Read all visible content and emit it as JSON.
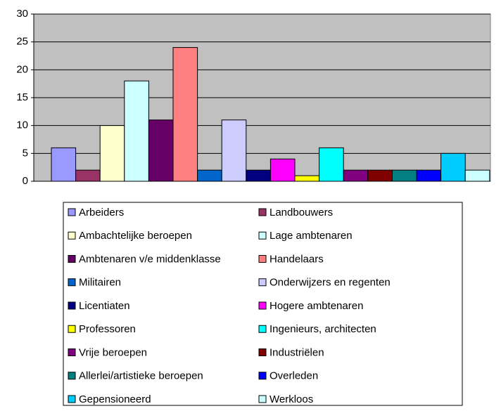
{
  "chart_data": {
    "type": "bar",
    "ylim": [
      0,
      30
    ],
    "yticks": [
      0,
      5,
      10,
      15,
      20,
      25,
      30
    ],
    "grid": true,
    "legend": "bottom",
    "series": [
      {
        "name": "Arbeiders",
        "color": "#9999ff",
        "values": [
          6
        ]
      },
      {
        "name": "Landbouwers",
        "color": "#993366",
        "values": [
          2
        ]
      },
      {
        "name": "Ambachtelijke beroepen",
        "color": "#ffffcc",
        "values": [
          10
        ]
      },
      {
        "name": "Lage ambtenaren",
        "color": "#ccffff",
        "values": [
          18
        ]
      },
      {
        "name": "Ambtenaren v/e middenklasse",
        "color": "#660066",
        "values": [
          11
        ]
      },
      {
        "name": "Handelaars",
        "color": "#ff8080",
        "values": [
          24
        ]
      },
      {
        "name": "Militairen",
        "color": "#0066cc",
        "values": [
          2
        ]
      },
      {
        "name": "Onderwijzers en regenten",
        "color": "#ccccff",
        "values": [
          11
        ]
      },
      {
        "name": "Licentiaten",
        "color": "#000080",
        "values": [
          2
        ]
      },
      {
        "name": "Hogere ambtenaren",
        "color": "#ff00ff",
        "values": [
          4
        ]
      },
      {
        "name": "Professoren",
        "color": "#ffff00",
        "values": [
          1
        ]
      },
      {
        "name": "Ingenieurs, architecten",
        "color": "#00ffff",
        "values": [
          6
        ]
      },
      {
        "name": "Vrije beroepen",
        "color": "#800080",
        "values": [
          2
        ]
      },
      {
        "name": "Industriëlen",
        "color": "#800000",
        "values": [
          2
        ]
      },
      {
        "name": "Allerlei/artistieke beroepen",
        "color": "#008080",
        "values": [
          2
        ]
      },
      {
        "name": "Overleden",
        "color": "#0000ff",
        "values": [
          2
        ]
      },
      {
        "name": "Gepensioneerd",
        "color": "#00ccff",
        "values": [
          5
        ]
      },
      {
        "name": "Werkloos",
        "color": "#ccffff",
        "values": [
          2
        ]
      }
    ]
  }
}
